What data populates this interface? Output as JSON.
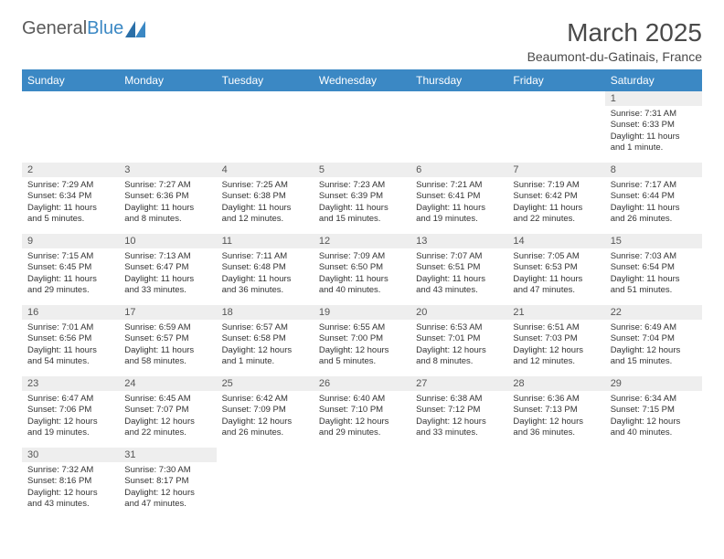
{
  "logo": {
    "text1": "General",
    "text2": "Blue"
  },
  "title": "March 2025",
  "location": "Beaumont-du-Gatinais, France",
  "weekdays": [
    "Sunday",
    "Monday",
    "Tuesday",
    "Wednesday",
    "Thursday",
    "Friday",
    "Saturday"
  ],
  "colors": {
    "header_bg": "#3b88c4",
    "header_text": "#ffffff",
    "daynum_bg": "#eeeeee",
    "text": "#333333"
  },
  "weeks": [
    [
      null,
      null,
      null,
      null,
      null,
      null,
      {
        "n": "1",
        "sunrise": "7:31 AM",
        "sunset": "6:33 PM",
        "daylight": "11 hours and 1 minute."
      }
    ],
    [
      {
        "n": "2",
        "sunrise": "7:29 AM",
        "sunset": "6:34 PM",
        "daylight": "11 hours and 5 minutes."
      },
      {
        "n": "3",
        "sunrise": "7:27 AM",
        "sunset": "6:36 PM",
        "daylight": "11 hours and 8 minutes."
      },
      {
        "n": "4",
        "sunrise": "7:25 AM",
        "sunset": "6:38 PM",
        "daylight": "11 hours and 12 minutes."
      },
      {
        "n": "5",
        "sunrise": "7:23 AM",
        "sunset": "6:39 PM",
        "daylight": "11 hours and 15 minutes."
      },
      {
        "n": "6",
        "sunrise": "7:21 AM",
        "sunset": "6:41 PM",
        "daylight": "11 hours and 19 minutes."
      },
      {
        "n": "7",
        "sunrise": "7:19 AM",
        "sunset": "6:42 PM",
        "daylight": "11 hours and 22 minutes."
      },
      {
        "n": "8",
        "sunrise": "7:17 AM",
        "sunset": "6:44 PM",
        "daylight": "11 hours and 26 minutes."
      }
    ],
    [
      {
        "n": "9",
        "sunrise": "7:15 AM",
        "sunset": "6:45 PM",
        "daylight": "11 hours and 29 minutes."
      },
      {
        "n": "10",
        "sunrise": "7:13 AM",
        "sunset": "6:47 PM",
        "daylight": "11 hours and 33 minutes."
      },
      {
        "n": "11",
        "sunrise": "7:11 AM",
        "sunset": "6:48 PM",
        "daylight": "11 hours and 36 minutes."
      },
      {
        "n": "12",
        "sunrise": "7:09 AM",
        "sunset": "6:50 PM",
        "daylight": "11 hours and 40 minutes."
      },
      {
        "n": "13",
        "sunrise": "7:07 AM",
        "sunset": "6:51 PM",
        "daylight": "11 hours and 43 minutes."
      },
      {
        "n": "14",
        "sunrise": "7:05 AM",
        "sunset": "6:53 PM",
        "daylight": "11 hours and 47 minutes."
      },
      {
        "n": "15",
        "sunrise": "7:03 AM",
        "sunset": "6:54 PM",
        "daylight": "11 hours and 51 minutes."
      }
    ],
    [
      {
        "n": "16",
        "sunrise": "7:01 AM",
        "sunset": "6:56 PM",
        "daylight": "11 hours and 54 minutes."
      },
      {
        "n": "17",
        "sunrise": "6:59 AM",
        "sunset": "6:57 PM",
        "daylight": "11 hours and 58 minutes."
      },
      {
        "n": "18",
        "sunrise": "6:57 AM",
        "sunset": "6:58 PM",
        "daylight": "12 hours and 1 minute."
      },
      {
        "n": "19",
        "sunrise": "6:55 AM",
        "sunset": "7:00 PM",
        "daylight": "12 hours and 5 minutes."
      },
      {
        "n": "20",
        "sunrise": "6:53 AM",
        "sunset": "7:01 PM",
        "daylight": "12 hours and 8 minutes."
      },
      {
        "n": "21",
        "sunrise": "6:51 AM",
        "sunset": "7:03 PM",
        "daylight": "12 hours and 12 minutes."
      },
      {
        "n": "22",
        "sunrise": "6:49 AM",
        "sunset": "7:04 PM",
        "daylight": "12 hours and 15 minutes."
      }
    ],
    [
      {
        "n": "23",
        "sunrise": "6:47 AM",
        "sunset": "7:06 PM",
        "daylight": "12 hours and 19 minutes."
      },
      {
        "n": "24",
        "sunrise": "6:45 AM",
        "sunset": "7:07 PM",
        "daylight": "12 hours and 22 minutes."
      },
      {
        "n": "25",
        "sunrise": "6:42 AM",
        "sunset": "7:09 PM",
        "daylight": "12 hours and 26 minutes."
      },
      {
        "n": "26",
        "sunrise": "6:40 AM",
        "sunset": "7:10 PM",
        "daylight": "12 hours and 29 minutes."
      },
      {
        "n": "27",
        "sunrise": "6:38 AM",
        "sunset": "7:12 PM",
        "daylight": "12 hours and 33 minutes."
      },
      {
        "n": "28",
        "sunrise": "6:36 AM",
        "sunset": "7:13 PM",
        "daylight": "12 hours and 36 minutes."
      },
      {
        "n": "29",
        "sunrise": "6:34 AM",
        "sunset": "7:15 PM",
        "daylight": "12 hours and 40 minutes."
      }
    ],
    [
      {
        "n": "30",
        "sunrise": "7:32 AM",
        "sunset": "8:16 PM",
        "daylight": "12 hours and 43 minutes."
      },
      {
        "n": "31",
        "sunrise": "7:30 AM",
        "sunset": "8:17 PM",
        "daylight": "12 hours and 47 minutes."
      },
      null,
      null,
      null,
      null,
      null
    ]
  ],
  "labels": {
    "sunrise": "Sunrise: ",
    "sunset": "Sunset: ",
    "daylight": "Daylight: "
  }
}
